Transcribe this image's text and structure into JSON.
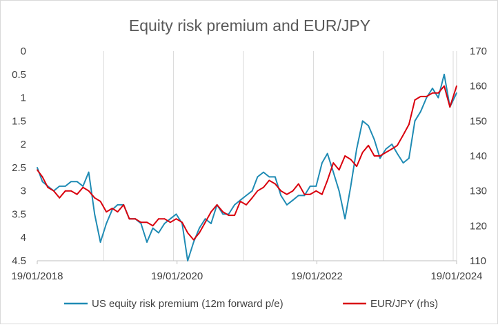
{
  "colors": {
    "erp": "#1F8BB4",
    "eurjpy": "#D9000D",
    "grid": "#d9d9d9",
    "axis_text": "#404040",
    "title_text": "#595959"
  },
  "chart_data": {
    "type": "line",
    "title": "Equity risk premium and EUR/JPY",
    "x_tick_labels": [
      "19/01/2018",
      "19/01/2020",
      "19/01/2022",
      "19/01/2024"
    ],
    "x_range": [
      "2018-01-19",
      "2024-01-19"
    ],
    "y_left": {
      "min": 0,
      "max": 4.5,
      "inverted": true,
      "ticks": [
        0,
        0.5,
        1,
        1.5,
        2,
        2.5,
        3,
        3.5,
        4,
        4.5
      ],
      "tick_labels": [
        "0",
        "0.5",
        "1",
        "1.5",
        "2",
        "2.5",
        "3",
        "3.5",
        "4",
        "4.5"
      ]
    },
    "y_right": {
      "min": 110,
      "max": 170,
      "ticks": [
        110,
        120,
        130,
        140,
        150,
        160,
        170
      ],
      "tick_labels": [
        "110",
        "120",
        "130",
        "140",
        "150",
        "160",
        "170"
      ]
    },
    "grid": "vertical",
    "legend_position": "bottom",
    "series": [
      {
        "name": "US equity risk premium (12m forward p/e)",
        "axis": "left",
        "x": [
          "2018-01-19",
          "2018-02-15",
          "2018-03-15",
          "2018-04-15",
          "2018-05-15",
          "2018-06-15",
          "2018-07-15",
          "2018-08-15",
          "2018-09-15",
          "2018-10-15",
          "2018-11-15",
          "2018-12-15",
          "2019-01-15",
          "2019-02-15",
          "2019-03-15",
          "2019-04-15",
          "2019-05-15",
          "2019-06-15",
          "2019-07-15",
          "2019-08-15",
          "2019-09-15",
          "2019-10-15",
          "2019-11-15",
          "2019-12-15",
          "2020-01-15",
          "2020-02-15",
          "2020-03-15",
          "2020-04-15",
          "2020-05-15",
          "2020-06-15",
          "2020-07-15",
          "2020-08-15",
          "2020-09-15",
          "2020-10-15",
          "2020-11-15",
          "2020-12-15",
          "2021-01-15",
          "2021-02-15",
          "2021-03-15",
          "2021-04-15",
          "2021-05-15",
          "2021-06-15",
          "2021-07-15",
          "2021-08-15",
          "2021-09-15",
          "2021-10-15",
          "2021-11-15",
          "2021-12-15",
          "2022-01-15",
          "2022-02-15",
          "2022-03-15",
          "2022-04-15",
          "2022-05-15",
          "2022-06-15",
          "2022-07-15",
          "2022-08-15",
          "2022-09-15",
          "2022-10-15",
          "2022-11-15",
          "2022-12-15",
          "2023-01-15",
          "2023-02-15",
          "2023-03-15",
          "2023-04-15",
          "2023-05-15",
          "2023-06-15",
          "2023-07-15",
          "2023-08-15",
          "2023-09-15",
          "2023-10-15",
          "2023-11-15",
          "2023-12-15",
          "2024-01-19"
        ],
        "values": [
          2.5,
          2.8,
          2.9,
          3.0,
          2.9,
          2.9,
          2.8,
          2.8,
          2.9,
          2.6,
          3.5,
          4.1,
          3.7,
          3.4,
          3.3,
          3.3,
          3.6,
          3.6,
          3.7,
          4.1,
          3.8,
          3.9,
          3.7,
          3.6,
          3.5,
          3.7,
          4.5,
          4.1,
          3.8,
          3.6,
          3.7,
          3.3,
          3.5,
          3.5,
          3.3,
          3.2,
          3.1,
          3.0,
          2.7,
          2.6,
          2.7,
          2.7,
          3.1,
          3.3,
          3.2,
          3.1,
          3.1,
          2.9,
          2.9,
          2.4,
          2.2,
          2.6,
          3.0,
          3.6,
          2.9,
          2.1,
          1.5,
          1.6,
          1.9,
          2.3,
          2.1,
          2.0,
          2.2,
          2.4,
          2.3,
          1.5,
          1.3,
          1.0,
          0.8,
          1.0,
          0.5,
          1.2,
          0.9
        ]
      },
      {
        "name": "EUR/JPY (rhs)",
        "axis": "right",
        "x": [
          "2018-01-19",
          "2018-02-15",
          "2018-03-15",
          "2018-04-15",
          "2018-05-15",
          "2018-06-15",
          "2018-07-15",
          "2018-08-15",
          "2018-09-15",
          "2018-10-15",
          "2018-11-15",
          "2018-12-15",
          "2019-01-15",
          "2019-02-15",
          "2019-03-15",
          "2019-04-15",
          "2019-05-15",
          "2019-06-15",
          "2019-07-15",
          "2019-08-15",
          "2019-09-15",
          "2019-10-15",
          "2019-11-15",
          "2019-12-15",
          "2020-01-15",
          "2020-02-15",
          "2020-03-15",
          "2020-04-15",
          "2020-05-15",
          "2020-06-15",
          "2020-07-15",
          "2020-08-15",
          "2020-09-15",
          "2020-10-15",
          "2020-11-15",
          "2020-12-15",
          "2021-01-15",
          "2021-02-15",
          "2021-03-15",
          "2021-04-15",
          "2021-05-15",
          "2021-06-15",
          "2021-07-15",
          "2021-08-15",
          "2021-09-15",
          "2021-10-15",
          "2021-11-15",
          "2021-12-15",
          "2022-01-15",
          "2022-02-15",
          "2022-03-15",
          "2022-04-15",
          "2022-05-15",
          "2022-06-15",
          "2022-07-15",
          "2022-08-15",
          "2022-09-15",
          "2022-10-15",
          "2022-11-15",
          "2022-12-15",
          "2023-01-15",
          "2023-02-15",
          "2023-03-15",
          "2023-04-15",
          "2023-05-15",
          "2023-06-15",
          "2023-07-15",
          "2023-08-15",
          "2023-09-15",
          "2023-10-15",
          "2023-11-15",
          "2023-12-15",
          "2024-01-19"
        ],
        "values": [
          136,
          134,
          131,
          130,
          128,
          130,
          130,
          129,
          131,
          130,
          128,
          127,
          124,
          125,
          124,
          126,
          122,
          122,
          121,
          121,
          120,
          122,
          122,
          121,
          122,
          121,
          118,
          116,
          118,
          121,
          124,
          126,
          124,
          123,
          123,
          127,
          126,
          128,
          130,
          131,
          133,
          132,
          130,
          129,
          130,
          132,
          129,
          129,
          130,
          129,
          133,
          138,
          136,
          140,
          139,
          137,
          141,
          143,
          140,
          140,
          141,
          142,
          143,
          146,
          149,
          156,
          157,
          157,
          158,
          158,
          160,
          154,
          160
        ]
      }
    ]
  }
}
